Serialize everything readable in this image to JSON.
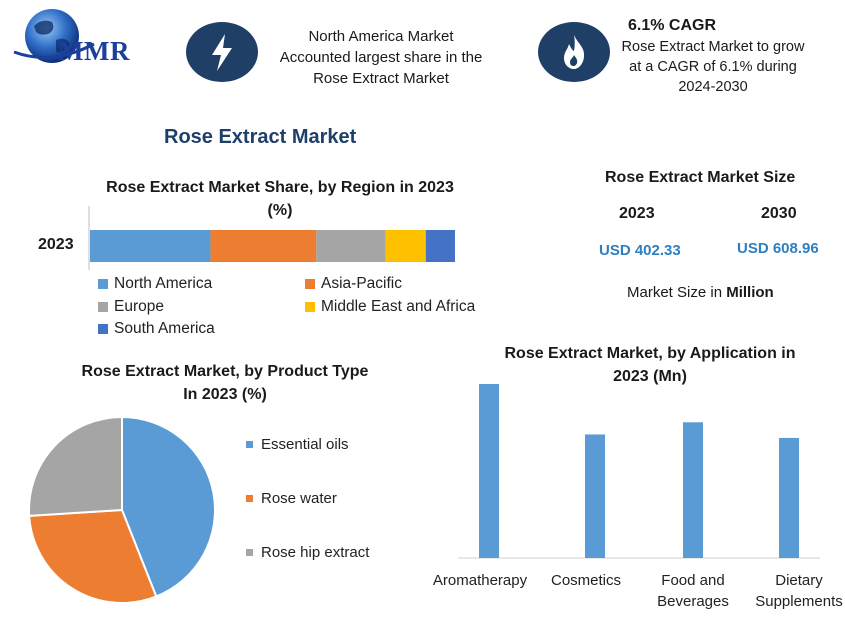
{
  "logo": {
    "text": "MMR"
  },
  "header": {
    "box1": {
      "line1": "North America Market",
      "line2": "Accounted largest share in the",
      "line3": "Rose Extract Market"
    },
    "box2": {
      "title": "6.1% CAGR",
      "line1": "Rose Extract Market to grow",
      "line2": "at a CAGR of 6.1% during",
      "line3": "2024-2030"
    }
  },
  "main_title": "Rose Extract Market",
  "market_size": {
    "title": "Rose Extract Market Size",
    "year_1": "2023",
    "year_2": "2030",
    "value_1": "USD 402.33",
    "value_2": "USD 608.96",
    "note_prefix": "Market Size in ",
    "note_bold": "Million"
  },
  "colors": {
    "north_america": "#5b9bd5",
    "asia_pacific": "#ed7d31",
    "europe": "#a5a5a5",
    "mea": "#ffc000",
    "south_america": "#4472c4",
    "header_icon_bg": "#1f3f67",
    "title_blue": "#1f3f6b",
    "value_blue": "#2e7fc1"
  },
  "chart_data": [
    {
      "type": "bar",
      "orientation": "horizontal-stacked",
      "title_line1": "Rose Extract Market Share, by Region in 2023",
      "title_line2": "(%)",
      "categories": [
        "2023"
      ],
      "series": [
        {
          "name": "North America",
          "values": [
            33
          ]
        },
        {
          "name": "Asia-Pacific",
          "values": [
            29
          ]
        },
        {
          "name": "Europe",
          "values": [
            19
          ]
        },
        {
          "name": "Middle East and Africa",
          "values": [
            11
          ]
        },
        {
          "name": "South America",
          "values": [
            8
          ]
        }
      ],
      "legend_position": "bottom"
    },
    {
      "type": "pie",
      "title_line1": "Rose Extract Market, by Product Type",
      "title_line2": "In 2023 (%)",
      "labels": [
        "Essential oils",
        "Rose water",
        "Rose hip extract"
      ],
      "values": [
        44,
        30,
        26
      ],
      "legend_position": "right"
    },
    {
      "type": "bar",
      "title_line1": "Rose Extract Market, by Application in",
      "title_line2": "2023 (Mn)",
      "categories": [
        "Aromatherapy",
        "Cosmetics",
        "Food and Beverages",
        "Dietary Supplements"
      ],
      "category_lines": [
        [
          "Aromatherapy"
        ],
        [
          "Cosmetics"
        ],
        [
          "Food and",
          "Beverages"
        ],
        [
          "Dietary",
          "Supplements"
        ]
      ],
      "values": [
        100,
        71,
        78,
        69
      ],
      "grid": false
    }
  ]
}
